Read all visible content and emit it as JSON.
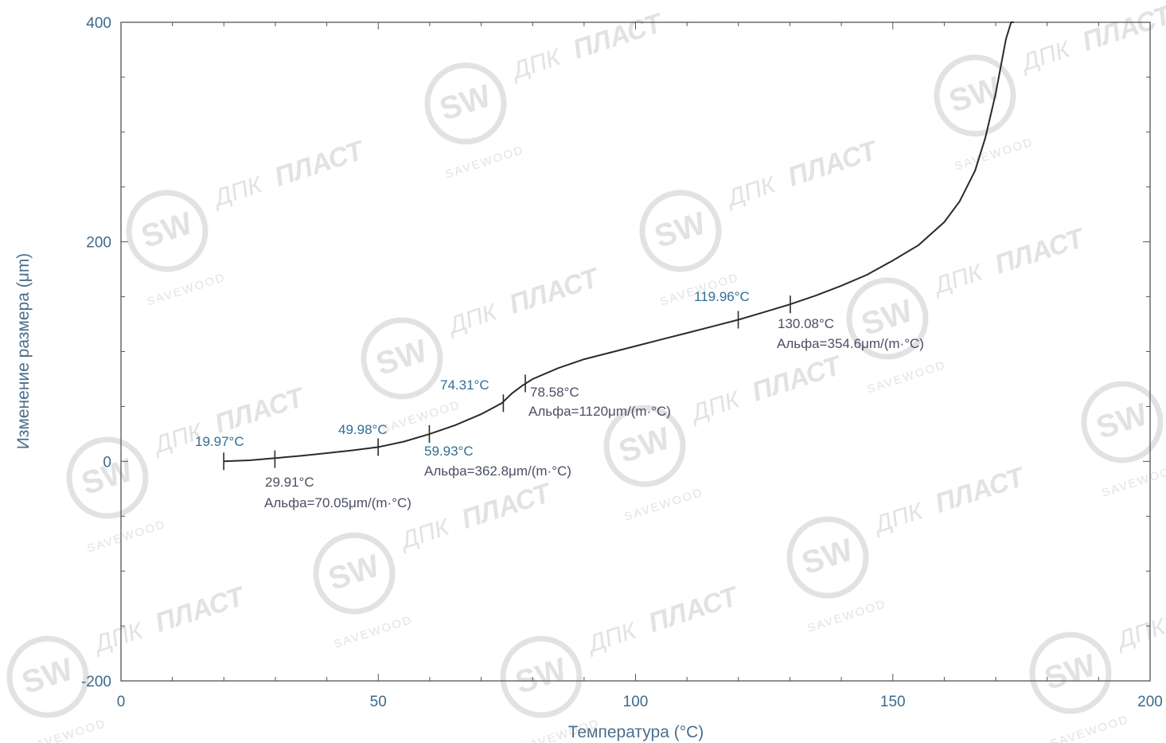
{
  "chart_data": {
    "type": "line",
    "xlabel": "Температура (°C)",
    "ylabel": "Изменение размера (μm)",
    "xlim": [
      0,
      200
    ],
    "ylim": [
      -200,
      400
    ],
    "x_ticks": [
      "0",
      "50",
      "100",
      "150",
      "200"
    ],
    "y_ticks": [
      "-200",
      "0",
      "200",
      "400"
    ],
    "grid": false,
    "series": [
      {
        "x": [
          20,
          25,
          30,
          35,
          40,
          45,
          50,
          55,
          60,
          65,
          70,
          74,
          76,
          78,
          80,
          85,
          90,
          95,
          100,
          105,
          110,
          115,
          120,
          125,
          130,
          135,
          140,
          145,
          150,
          155,
          160,
          163,
          166,
          168,
          170,
          171,
          172,
          173,
          173.5
        ],
        "y": [
          0,
          1,
          3,
          5,
          7.5,
          10,
          13,
          18,
          25,
          33,
          43,
          53,
          62,
          69,
          75,
          85,
          93,
          99,
          105,
          111,
          117,
          123,
          129,
          136,
          143,
          151,
          160,
          170,
          183,
          197,
          218,
          237,
          265,
          295,
          335,
          360,
          385,
          400,
          400
        ]
      }
    ],
    "markers": [
      {
        "x": 19.97,
        "y": 0,
        "label": "19.97°C"
      },
      {
        "x": 29.91,
        "y": 2,
        "label": "29.91°C"
      },
      {
        "x": 49.98,
        "y": 13,
        "label": "49.98°C"
      },
      {
        "x": 59.93,
        "y": 25,
        "label": "59.93°C"
      },
      {
        "x": 74.31,
        "y": 53,
        "label": "74.31°C"
      },
      {
        "x": 78.58,
        "y": 71,
        "label": "78.58°C"
      },
      {
        "x": 119.96,
        "y": 129,
        "label": "119.96°C"
      },
      {
        "x": 130.08,
        "y": 143,
        "label": "130.08°C"
      }
    ],
    "alpha_labels": [
      "Альфа=70.05μm/(m·°C)",
      "Альфа=362.8μm/(m·°C)",
      "Альфа=1120μm/(m·°C)",
      "Альфа=354.6μm/(m·°C)"
    ]
  },
  "watermark": {
    "brand_a": "ДПК",
    "brand_b": "ПЛАСТ",
    "brand_c": "SAVEWOOD",
    "logo_letters": "SW"
  },
  "colors": {
    "curve": "#2b2b2b",
    "axis": "#555555",
    "tick_label": "#3b6a8c",
    "annotation": "#2f6f96",
    "watermark": "#cfcfcf"
  }
}
